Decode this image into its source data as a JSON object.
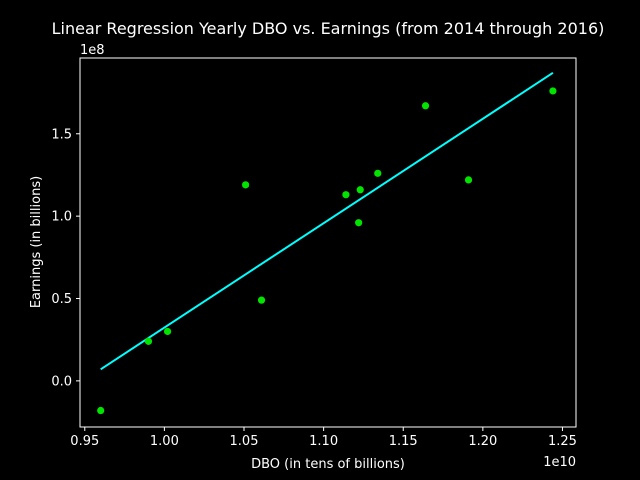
{
  "chart_data": {
    "type": "scatter",
    "title": "Linear Regression Yearly DBO vs. Earnings (from 2014 through 2016)",
    "xlabel": "DBO (in tens of billions)",
    "ylabel": "Earnings (in billions)",
    "x_offset_label": "1e10",
    "y_offset_label": "1e8",
    "xlim": [
      0.947,
      1.2585
    ],
    "ylim": [
      -0.28,
      1.96
    ],
    "xticks": [
      0.95,
      1.0,
      1.05,
      1.1,
      1.15,
      1.2,
      1.25
    ],
    "xtick_labels": [
      "0.95",
      "1.00",
      "1.05",
      "1.10",
      "1.15",
      "1.20",
      "1.25"
    ],
    "yticks": [
      0.0,
      0.5,
      1.0,
      1.5
    ],
    "ytick_labels": [
      "0.0",
      "0.5",
      "1.0",
      "1.5"
    ],
    "grid": false,
    "points": [
      {
        "x": 0.96,
        "y": -0.18
      },
      {
        "x": 0.99,
        "y": 0.24
      },
      {
        "x": 1.002,
        "y": 0.3
      },
      {
        "x": 1.051,
        "y": 1.19
      },
      {
        "x": 1.061,
        "y": 0.49
      },
      {
        "x": 1.114,
        "y": 1.13
      },
      {
        "x": 1.122,
        "y": 0.96
      },
      {
        "x": 1.123,
        "y": 1.16
      },
      {
        "x": 1.134,
        "y": 1.26
      },
      {
        "x": 1.164,
        "y": 1.67
      },
      {
        "x": 1.191,
        "y": 1.22
      },
      {
        "x": 1.244,
        "y": 1.76
      }
    ],
    "fit_line": {
      "x": [
        0.96,
        1.244
      ],
      "y": [
        0.07,
        1.87
      ]
    },
    "colors": {
      "background": "#000000",
      "points": "#00e400",
      "fit_line": "#00ffff",
      "axes": "#ffffff"
    }
  }
}
